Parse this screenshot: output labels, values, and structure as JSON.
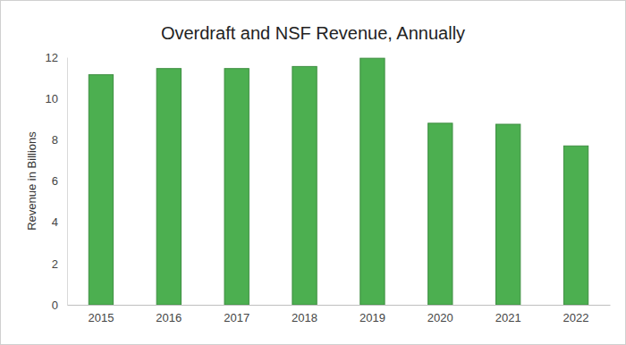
{
  "chart_data": {
    "type": "bar",
    "title": "Overdraft and NSF Revenue, Annually",
    "y_label": "Revenue in Billions",
    "categories": [
      "2015",
      "2016",
      "2017",
      "2018",
      "2019",
      "2020",
      "2021",
      "2022"
    ],
    "values": [
      11.15,
      11.45,
      11.45,
      11.55,
      11.95,
      8.8,
      8.75,
      7.7
    ],
    "color": "#4caf50",
    "ylim": [
      0,
      12
    ],
    "yticks": [
      0,
      2,
      4,
      6,
      8,
      10,
      12
    ],
    "grid": false
  }
}
